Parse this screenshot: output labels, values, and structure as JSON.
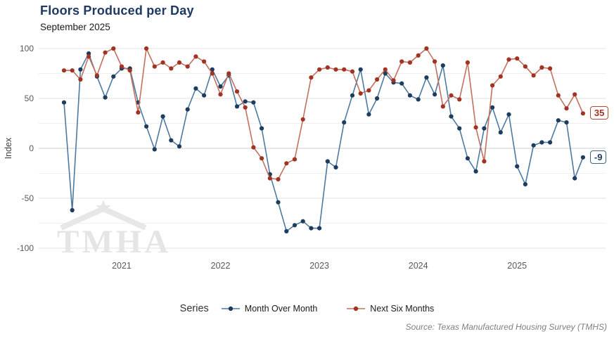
{
  "header": {
    "title": "Floors Produced per Day",
    "subtitle": "September 2025"
  },
  "axes": {
    "y_label": "Index",
    "y_tick_labels": [
      100,
      50,
      0,
      -50,
      -100
    ],
    "y_grid_ticks": [
      100,
      75,
      50,
      25,
      0,
      -25,
      -50,
      -75,
      -100
    ],
    "x_year_labels": [
      {
        "label": "2021",
        "month_index": 7
      },
      {
        "label": "2022",
        "month_index": 19
      },
      {
        "label": "2023",
        "month_index": 31
      },
      {
        "label": "2024",
        "month_index": 43
      },
      {
        "label": "2025",
        "month_index": 55
      }
    ]
  },
  "chart_data": {
    "type": "line",
    "title": "Floors Produced per Day",
    "subtitle": "September 2025",
    "x_frequency": "monthly",
    "x_start": "2020-06",
    "x_end": "2025-09",
    "ylim": [
      -110,
      110
    ],
    "grid": true,
    "legend_position": "bottom",
    "series": [
      {
        "name": "Month Over Month",
        "line_color": "#4d7aa0",
        "dot_color": "#1d3c5e",
        "values": [
          46,
          -62,
          79,
          95,
          72,
          51,
          72,
          80,
          80,
          46,
          22,
          -1,
          32,
          8,
          2,
          39,
          60,
          53,
          79,
          62,
          73,
          42,
          47,
          46,
          20,
          -26,
          -54,
          -83,
          -77,
          -73,
          -80,
          -80,
          -13,
          -19,
          26,
          53,
          79,
          34,
          50,
          75,
          66,
          65,
          53,
          49,
          71,
          54,
          83,
          32,
          20,
          -10,
          -23,
          20,
          41,
          16,
          34,
          -18,
          -36,
          3,
          6,
          6,
          28,
          26,
          -30,
          -9
        ]
      },
      {
        "name": "Next Six Months",
        "line_color": "#c4705f",
        "dot_color": "#a13322",
        "values": [
          78,
          78,
          69,
          92,
          73,
          96,
          100,
          82,
          78,
          36,
          100,
          82,
          86,
          80,
          86,
          82,
          92,
          87,
          75,
          54,
          75,
          57,
          41,
          1,
          -10,
          -30,
          -31,
          -15,
          -11,
          29,
          71,
          79,
          81,
          79,
          79,
          77,
          55,
          58,
          69,
          79,
          68,
          87,
          86,
          93,
          100,
          87,
          42,
          53,
          49,
          86,
          21,
          -13,
          63,
          72,
          89,
          90,
          82,
          73,
          81,
          80,
          53,
          40,
          54,
          35
        ]
      }
    ],
    "end_labels": [
      {
        "text": "35",
        "series_index": 1
      },
      {
        "text": "-9",
        "series_index": 0
      }
    ]
  },
  "legend": {
    "title": "Series",
    "items": [
      {
        "label": "Month Over Month"
      },
      {
        "label": "Next Six Months"
      }
    ]
  },
  "watermark": {
    "text": "TMHA"
  },
  "footer": {
    "source": "Source: Texas Manufactured Housing Survey (TMHS)"
  }
}
